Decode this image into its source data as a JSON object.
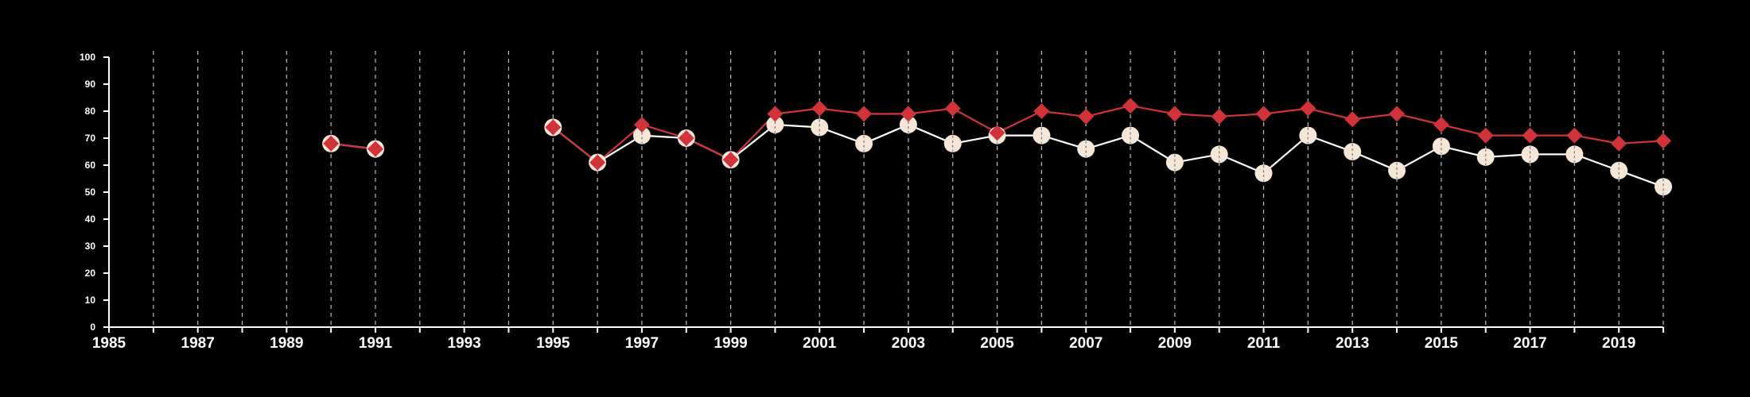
{
  "chart_data": {
    "type": "line",
    "title": "",
    "xlabel": "",
    "ylabel": "",
    "xlim": [
      1985,
      2020
    ],
    "ylim": [
      0,
      100
    ],
    "x_ticks": [
      1985,
      1987,
      1989,
      1991,
      1993,
      1995,
      1997,
      1999,
      2001,
      2003,
      2005,
      2007,
      2009,
      2011,
      2013,
      2015,
      2017,
      2019
    ],
    "y_ticks": [
      0,
      10,
      20,
      30,
      40,
      50,
      60,
      70,
      80,
      90,
      100
    ],
    "x_tick_labels": [
      "1985",
      "1987",
      "1989",
      "1991",
      "1993",
      "1995",
      "1997",
      "1999",
      "2001",
      "2003",
      "2005",
      "2007",
      "2009",
      "2011",
      "2013",
      "2015",
      "2017",
      "2019"
    ],
    "y_tick_labels": [
      "0",
      "10",
      "20",
      "30",
      "40",
      "50",
      "60",
      "70",
      "80",
      "90",
      "100"
    ],
    "grid": "vertical dashed lines at every year",
    "legend": "none",
    "series": [
      {
        "marker": "circle",
        "color": "#f5e6d8",
        "line_color": "#ffffff",
        "points": [
          [
            1990,
            68
          ],
          [
            1991,
            66
          ],
          [
            1995,
            74
          ],
          [
            1996,
            61
          ],
          [
            1997,
            71
          ],
          [
            1998,
            70
          ],
          [
            1999,
            62
          ],
          [
            2000,
            75
          ],
          [
            2001,
            74
          ],
          [
            2002,
            68
          ],
          [
            2003,
            75
          ],
          [
            2004,
            68
          ],
          [
            2005,
            71
          ],
          [
            2006,
            71
          ],
          [
            2007,
            66
          ],
          [
            2008,
            71
          ],
          [
            2009,
            61
          ],
          [
            2010,
            64
          ],
          [
            2011,
            57
          ],
          [
            2012,
            71
          ],
          [
            2013,
            65
          ],
          [
            2014,
            58
          ],
          [
            2015,
            67
          ],
          [
            2016,
            63
          ],
          [
            2017,
            64
          ],
          [
            2018,
            64
          ],
          [
            2019,
            58
          ],
          [
            2020,
            52
          ]
        ]
      },
      {
        "marker": "diamond",
        "color": "#d0333a",
        "line_color": "#d0333a",
        "points": [
          [
            1990,
            68
          ],
          [
            1991,
            66
          ],
          [
            1995,
            74
          ],
          [
            1996,
            61
          ],
          [
            1997,
            75
          ],
          [
            1998,
            70
          ],
          [
            1999,
            62
          ],
          [
            2000,
            79
          ],
          [
            2001,
            81
          ],
          [
            2002,
            79
          ],
          [
            2003,
            79
          ],
          [
            2004,
            81
          ],
          [
            2005,
            72
          ],
          [
            2006,
            80
          ],
          [
            2007,
            78
          ],
          [
            2008,
            82
          ],
          [
            2009,
            79
          ],
          [
            2010,
            78
          ],
          [
            2011,
            79
          ],
          [
            2012,
            81
          ],
          [
            2013,
            77
          ],
          [
            2014,
            79
          ],
          [
            2015,
            75
          ],
          [
            2016,
            71
          ],
          [
            2017,
            71
          ],
          [
            2018,
            71
          ],
          [
            2019,
            68
          ],
          [
            2020,
            69
          ]
        ]
      }
    ]
  }
}
